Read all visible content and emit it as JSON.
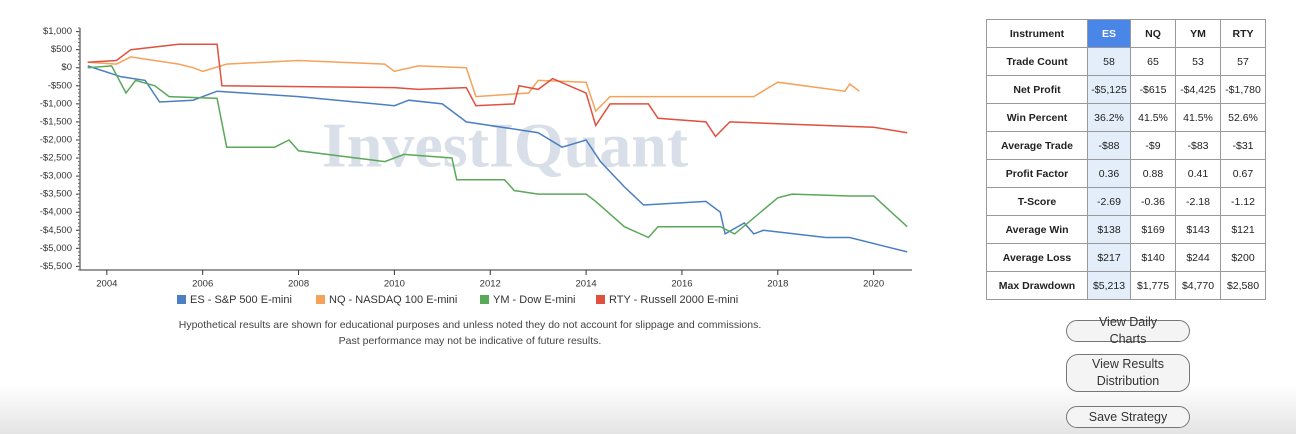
{
  "chart_data": {
    "type": "line",
    "watermark": "InvestIQuant",
    "xlim": [
      2003.44,
      2020.8
    ],
    "xticks": [
      2004,
      2006,
      2008,
      2010,
      2012,
      2014,
      2016,
      2018,
      2020
    ],
    "ylim": [
      -5600,
      1100
    ],
    "yticks": [
      {
        "value": 1000,
        "label": "$1,000"
      },
      {
        "value": 500,
        "label": "$500"
      },
      {
        "value": 0,
        "label": "$0"
      },
      {
        "value": -500,
        "label": "-$500"
      },
      {
        "value": -1000,
        "label": "-$1,000"
      },
      {
        "value": -1500,
        "label": "-$1,500"
      },
      {
        "value": -2000,
        "label": "-$2,000"
      },
      {
        "value": -2500,
        "label": "-$2,500"
      },
      {
        "value": -3000,
        "label": "-$3,000"
      },
      {
        "value": -3500,
        "label": "-$3,500"
      },
      {
        "value": -4000,
        "label": "-$4,000"
      },
      {
        "value": -4500,
        "label": "-$4,500"
      },
      {
        "value": -5000,
        "label": "-$5,000"
      },
      {
        "value": -5500,
        "label": "-$5,500"
      }
    ],
    "series": [
      {
        "name": "ES - S&P 500 E-mini",
        "color": "#4a7fc1",
        "x": [
          2003.6,
          2004.3,
          2004.8,
          2005.1,
          2005.8,
          2006.3,
          2008,
          2010,
          2010.3,
          2011,
          2011.5,
          2012,
          2013,
          2013.5,
          2014,
          2014.3,
          2014.8,
          2015.2,
          2016.5,
          2016.8,
          2016.9,
          2017.3,
          2017.5,
          2017.7,
          2019,
          2019.5,
          2020.7
        ],
        "values": [
          50,
          -250,
          -350,
          -950,
          -900,
          -650,
          -800,
          -1050,
          -900,
          -1000,
          -1500,
          -1600,
          -1800,
          -2200,
          -2000,
          -2600,
          -3300,
          -3800,
          -3700,
          -4000,
          -4600,
          -4300,
          -4600,
          -4500,
          -4700,
          -4700,
          -5100
        ]
      },
      {
        "name": "NQ - NASDAQ 100 E-mini",
        "color": "#f5a25a",
        "x": [
          2003.6,
          2004.2,
          2004.5,
          2005.5,
          2005.8,
          2006,
          2006.5,
          2008,
          2009.8,
          2010,
          2010.5,
          2011.5,
          2011.7,
          2012.8,
          2013,
          2014,
          2014.2,
          2014.5,
          2016.5,
          2017.5,
          2018,
          2019.4,
          2019.5,
          2019.7
        ],
        "values": [
          150,
          100,
          300,
          100,
          0,
          -100,
          100,
          200,
          100,
          -100,
          50,
          0,
          -800,
          -700,
          -350,
          -400,
          -1200,
          -800,
          -800,
          -800,
          -400,
          -650,
          -450,
          -650
        ]
      },
      {
        "name": "YM - Dow E-mini",
        "color": "#5aa85a",
        "x": [
          2003.6,
          2004.1,
          2004.4,
          2004.6,
          2005,
          2005.3,
          2006.3,
          2006.5,
          2007.5,
          2007.8,
          2008,
          2009.8,
          2010.2,
          2011.2,
          2011.3,
          2012.3,
          2012.5,
          2013,
          2014,
          2014.2,
          2014.8,
          2015.3,
          2015.5,
          2016.8,
          2017.1,
          2018,
          2018.3,
          2019.5,
          2020,
          2020.7
        ],
        "values": [
          0,
          50,
          -700,
          -350,
          -500,
          -800,
          -850,
          -2200,
          -2200,
          -2000,
          -2300,
          -2600,
          -2400,
          -2500,
          -3100,
          -3100,
          -3400,
          -3500,
          -3500,
          -3700,
          -4400,
          -4700,
          -4400,
          -4400,
          -4600,
          -3600,
          -3500,
          -3550,
          -3550,
          -4400
        ]
      },
      {
        "name": "RTY - Russell 2000 E-mini",
        "color": "#e0503f",
        "x": [
          2003.6,
          2004.2,
          2004.5,
          2005.5,
          2006.3,
          2006.4,
          2010,
          2010.5,
          2011.5,
          2011.7,
          2012.5,
          2012.6,
          2013,
          2013.3,
          2014,
          2014.2,
          2014.5,
          2015.3,
          2015.5,
          2016.5,
          2016.7,
          2017,
          2018,
          2020,
          2020.7
        ],
        "values": [
          150,
          200,
          500,
          650,
          650,
          -500,
          -550,
          -600,
          -550,
          -1050,
          -1000,
          -500,
          -600,
          -300,
          -700,
          -1600,
          -1000,
          -1000,
          -1400,
          -1500,
          -1900,
          -1500,
          -1550,
          -1650,
          -1800
        ]
      }
    ]
  },
  "disclaimer": [
    "Hypothetical results are shown for educational purposes and unless noted they do not account for slippage and commissions.",
    "Past performance may not be indicative of future results."
  ],
  "table": {
    "header": [
      "Instrument",
      "ES",
      "NQ",
      "YM",
      "RTY"
    ],
    "rows": [
      [
        "Trade Count",
        "58",
        "65",
        "53",
        "57"
      ],
      [
        "Net Profit",
        "-$5,125",
        "-$615",
        "-$4,425",
        "-$1,780"
      ],
      [
        "Win Percent",
        "36.2%",
        "41.5%",
        "41.5%",
        "52.6%"
      ],
      [
        "Average Trade",
        "-$88",
        "-$9",
        "-$83",
        "-$31"
      ],
      [
        "Profit Factor",
        "0.36",
        "0.88",
        "0.41",
        "0.67"
      ],
      [
        "T-Score",
        "-2.69",
        "-0.36",
        "-2.18",
        "-1.12"
      ],
      [
        "Average Win",
        "$138",
        "$169",
        "$143",
        "$121"
      ],
      [
        "Average Loss",
        "$217",
        "$140",
        "$244",
        "$200"
      ],
      [
        "Max Drawdown",
        "$5,213",
        "$1,775",
        "$4,770",
        "$2,580"
      ]
    ]
  },
  "buttons": [
    "View Daily Charts",
    "View Results Distribution",
    "Save Strategy"
  ]
}
